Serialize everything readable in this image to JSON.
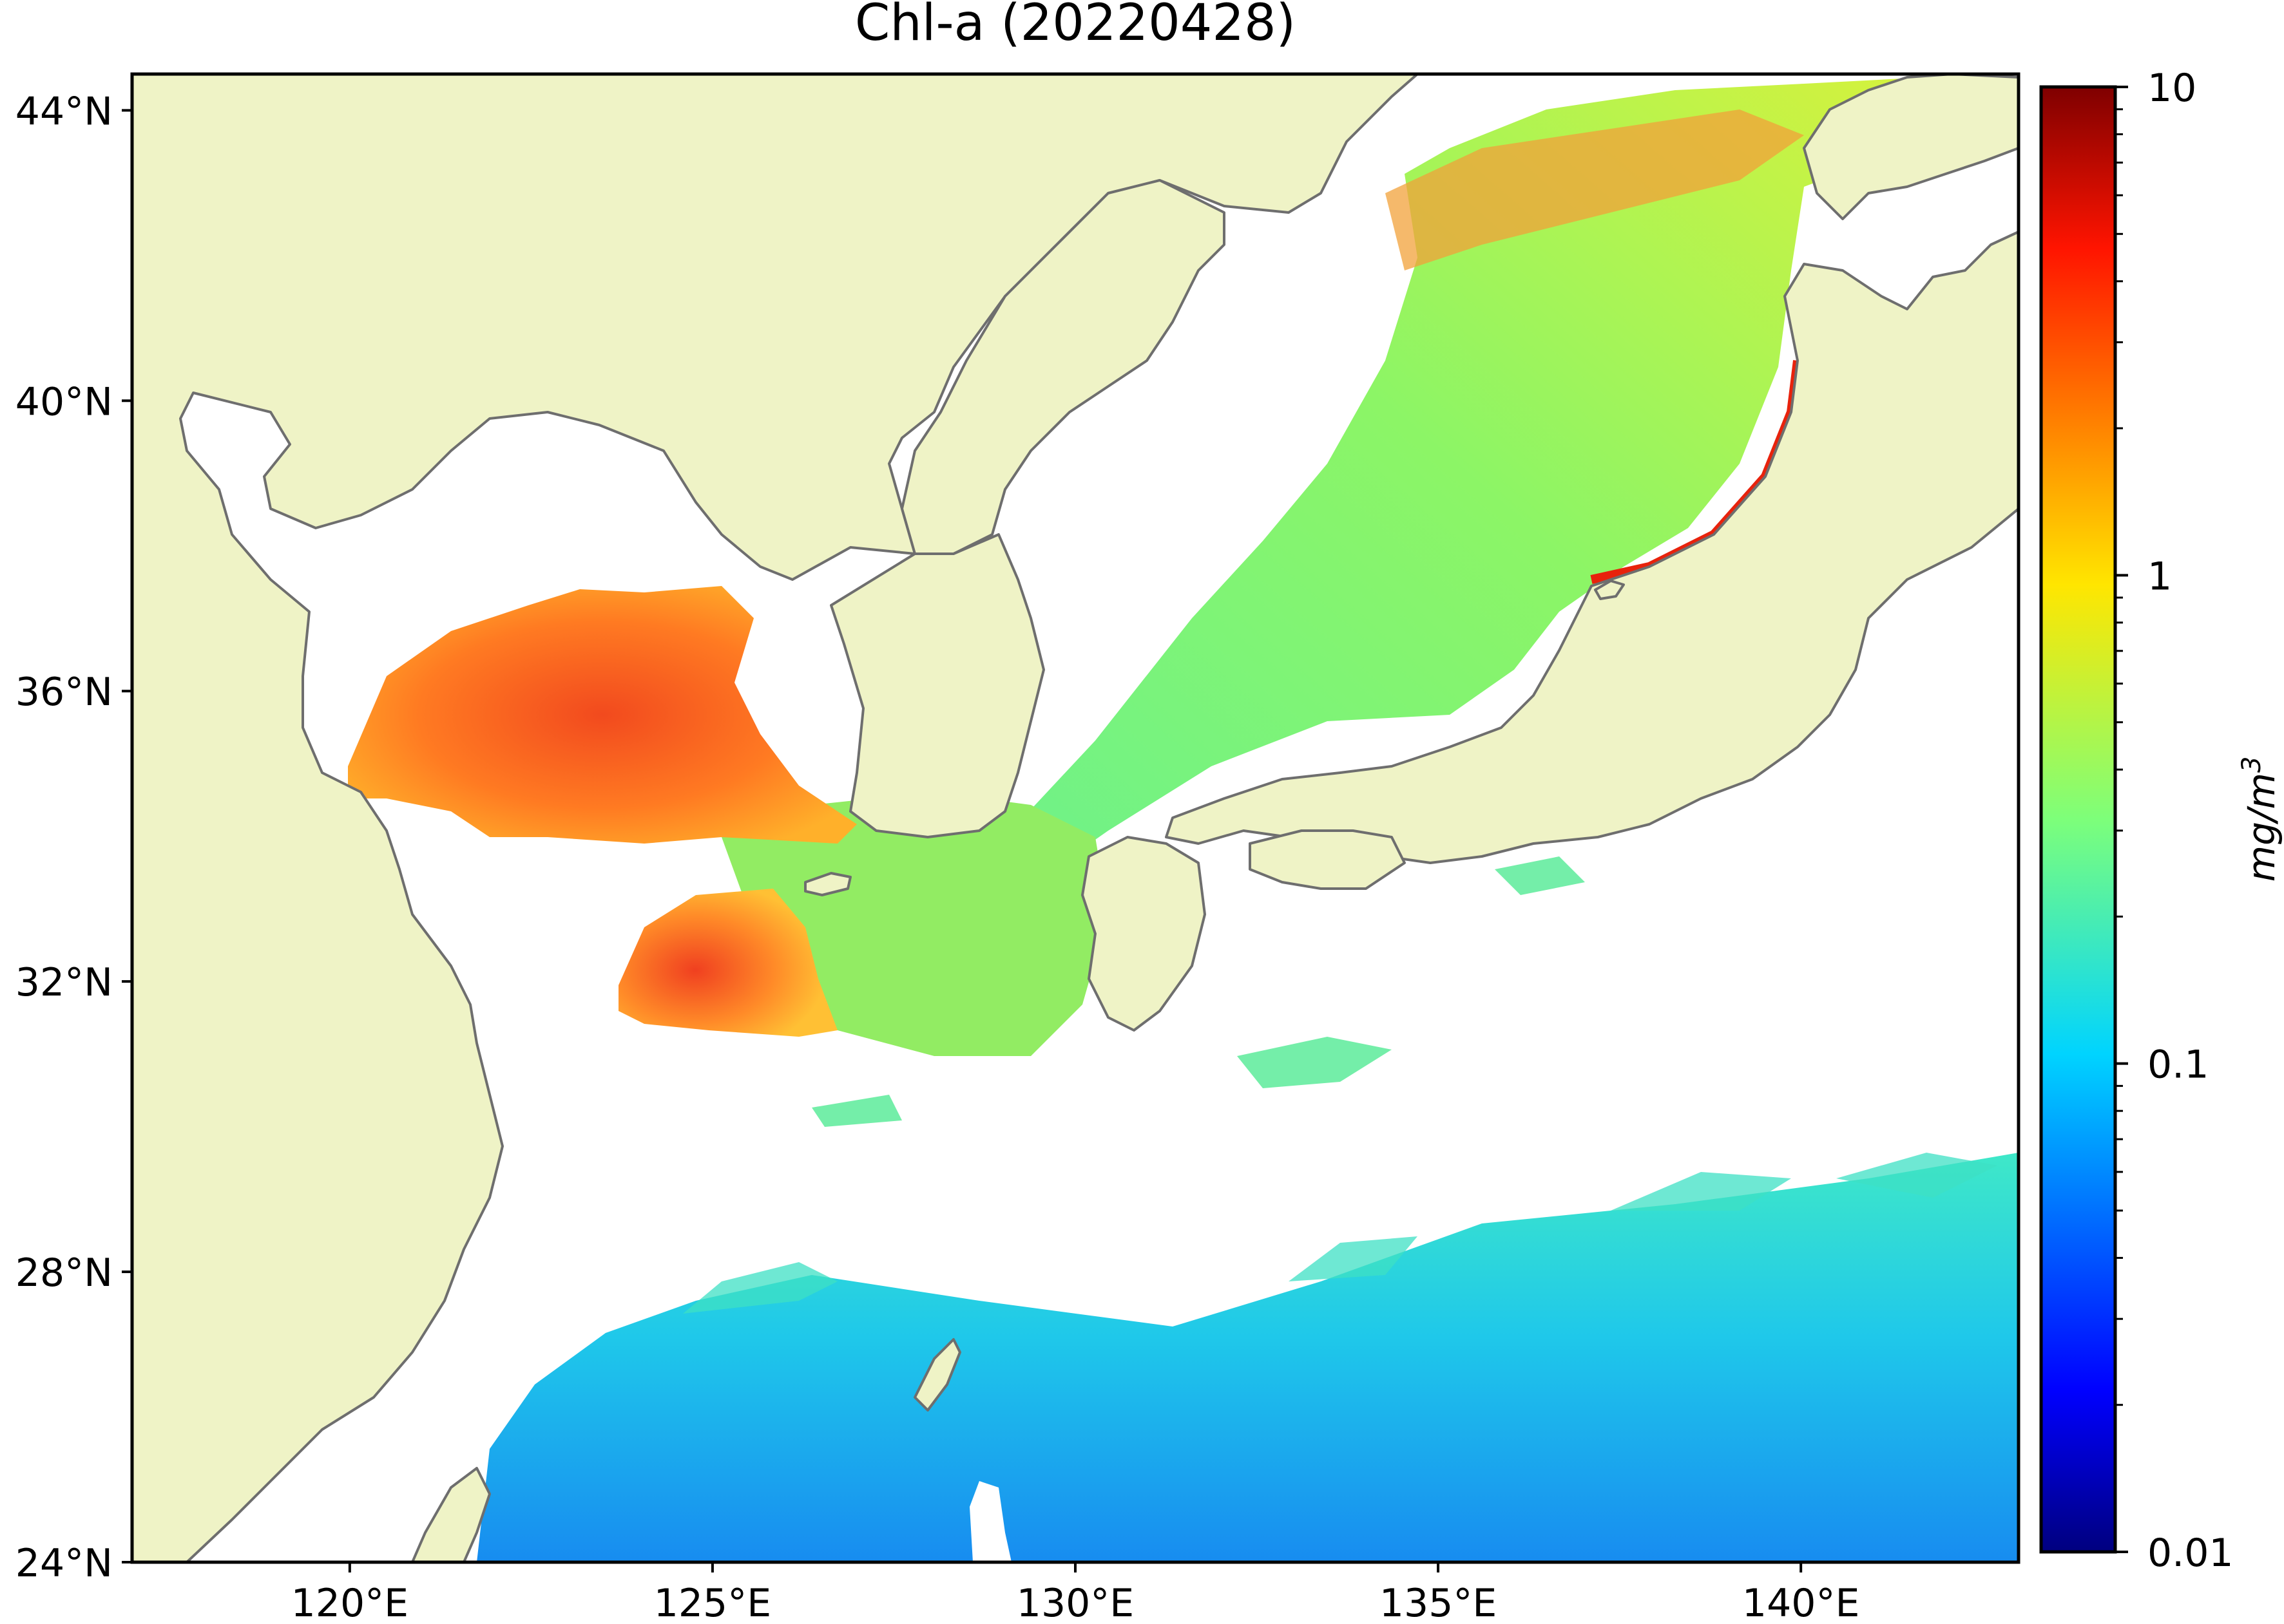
{
  "title": "Chl-a (20220428)",
  "map": {
    "extent": {
      "lon_min": 117,
      "lon_max": 143,
      "lat_min": 24,
      "lat_max": 44.5
    },
    "lat_ticks": [
      {
        "value": 44,
        "label": "44°N"
      },
      {
        "value": 40,
        "label": "40°N"
      },
      {
        "value": 36,
        "label": "36°N"
      },
      {
        "value": 32,
        "label": "32°N"
      },
      {
        "value": 28,
        "label": "28°N"
      },
      {
        "value": 24,
        "label": "24°N"
      }
    ],
    "lon_ticks": [
      {
        "value": 120,
        "label": "120°E"
      },
      {
        "value": 125,
        "label": "125°E"
      },
      {
        "value": 130,
        "label": "130°E"
      },
      {
        "value": 135,
        "label": "135°E"
      },
      {
        "value": 140,
        "label": "140°E"
      }
    ],
    "colors": {
      "land": "#eff3c6",
      "coastline": "#6e6e6e",
      "no_data": "#ffffff",
      "frame": "#000000"
    }
  },
  "colorbar": {
    "label_main": "mg/m",
    "label_exp": "3",
    "scale": "log",
    "colormap": "jet",
    "min": 0.01,
    "max": 10,
    "ticks": [
      {
        "value": 10,
        "label": "10"
      },
      {
        "value": 1,
        "label": "1"
      },
      {
        "value": 0.1,
        "label": "0.1"
      },
      {
        "value": 0.01,
        "label": "0.01"
      }
    ]
  }
}
